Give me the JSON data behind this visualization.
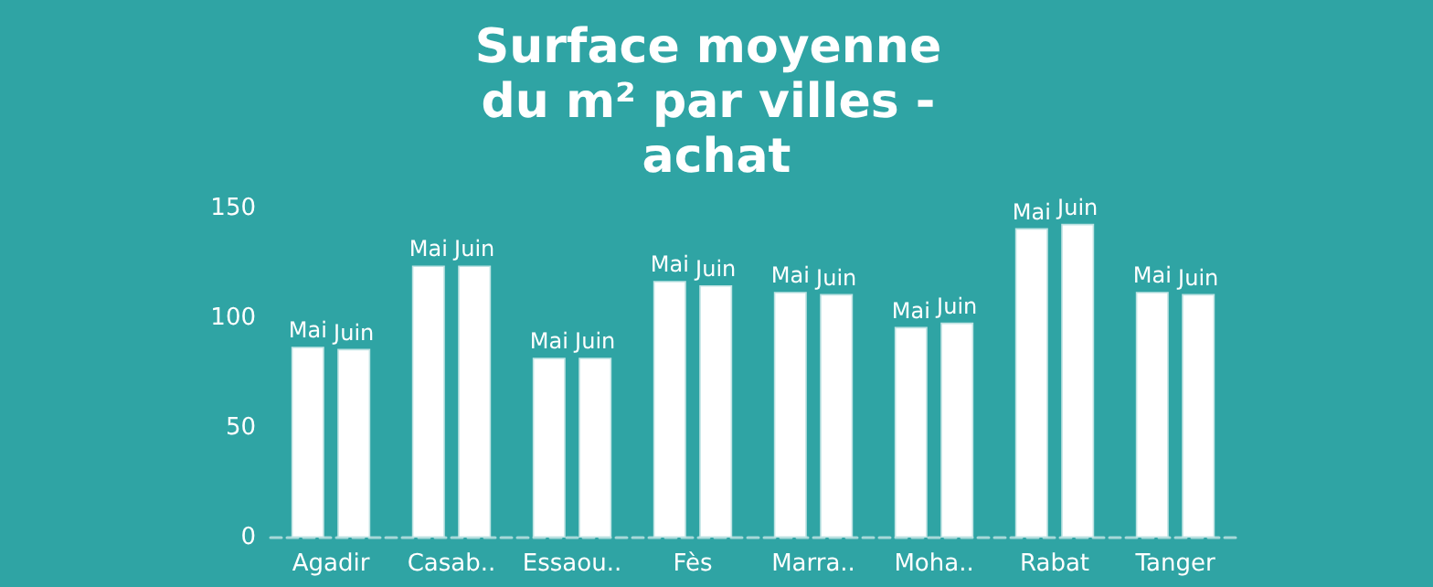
{
  "chart_data": {
    "type": "bar",
    "title": "Surface moyenne du m² par villes - achat",
    "categories": [
      "Agadir",
      "Casab..",
      "Essaou..",
      "Fès",
      "Marra..",
      "Moha..",
      "Rabat",
      "Tanger"
    ],
    "series": [
      {
        "name": "Mai",
        "color": "#ffffff",
        "values": [
          87,
          124,
          82,
          117,
          112,
          96,
          141,
          112
        ]
      },
      {
        "name": "Juin",
        "color": "#ffffff",
        "values": [
          86,
          124,
          82,
          115,
          111,
          98,
          143,
          111
        ]
      }
    ],
    "ylim": [
      0,
      150
    ],
    "yticks": [
      0,
      50,
      100,
      150
    ],
    "grid": false
  }
}
